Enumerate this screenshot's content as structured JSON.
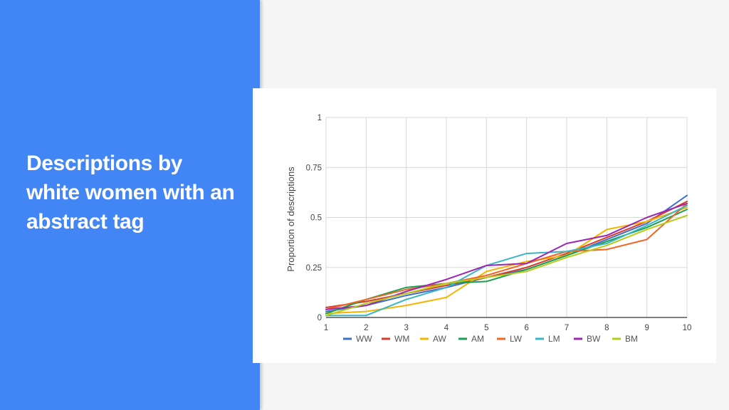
{
  "slide": {
    "title": "Descriptions by white women with an abstract tag"
  },
  "chart_data": {
    "type": "line",
    "title": "",
    "xlabel": "",
    "ylabel": "Proportion of descriptions",
    "x": [
      1,
      2,
      3,
      4,
      5,
      6,
      7,
      8,
      9,
      10
    ],
    "xlim": [
      1,
      10
    ],
    "ylim": [
      0,
      1
    ],
    "yticks": [
      0,
      0.25,
      0.5,
      0.75,
      1
    ],
    "yticklabels": [
      "0",
      "0.25",
      "0.5",
      "0.75",
      "1"
    ],
    "grid": true,
    "legend_position": "bottom",
    "series": [
      {
        "name": "WW",
        "color": "#3f6fc8",
        "values": [
          0.03,
          0.06,
          0.11,
          0.15,
          0.2,
          0.24,
          0.31,
          0.39,
          0.47,
          0.61
        ]
      },
      {
        "name": "WM",
        "color": "#d63b2f",
        "values": [
          0.05,
          0.08,
          0.12,
          0.16,
          0.2,
          0.25,
          0.32,
          0.4,
          0.48,
          0.58
        ]
      },
      {
        "name": "AW",
        "color": "#f4b400",
        "values": [
          0.02,
          0.03,
          0.06,
          0.1,
          0.23,
          0.28,
          0.31,
          0.44,
          0.48,
          0.55
        ]
      },
      {
        "name": "AM",
        "color": "#1e9e4f",
        "values": [
          0.02,
          0.09,
          0.15,
          0.17,
          0.18,
          0.24,
          0.31,
          0.38,
          0.45,
          0.54
        ]
      },
      {
        "name": "LW",
        "color": "#f26522",
        "values": [
          0.04,
          0.09,
          0.14,
          0.17,
          0.21,
          0.27,
          0.33,
          0.34,
          0.39,
          0.57
        ]
      },
      {
        "name": "LM",
        "color": "#38b6c4",
        "values": [
          0.01,
          0.01,
          0.09,
          0.15,
          0.26,
          0.32,
          0.33,
          0.37,
          0.46,
          0.56
        ]
      },
      {
        "name": "BW",
        "color": "#9c27b0",
        "values": [
          0.04,
          0.06,
          0.13,
          0.19,
          0.26,
          0.27,
          0.37,
          0.41,
          0.5,
          0.57
        ]
      },
      {
        "name": "BM",
        "color": "#b5cc18",
        "values": [
          0.01,
          0.07,
          0.12,
          0.17,
          0.2,
          0.23,
          0.3,
          0.36,
          0.44,
          0.51
        ]
      }
    ]
  }
}
